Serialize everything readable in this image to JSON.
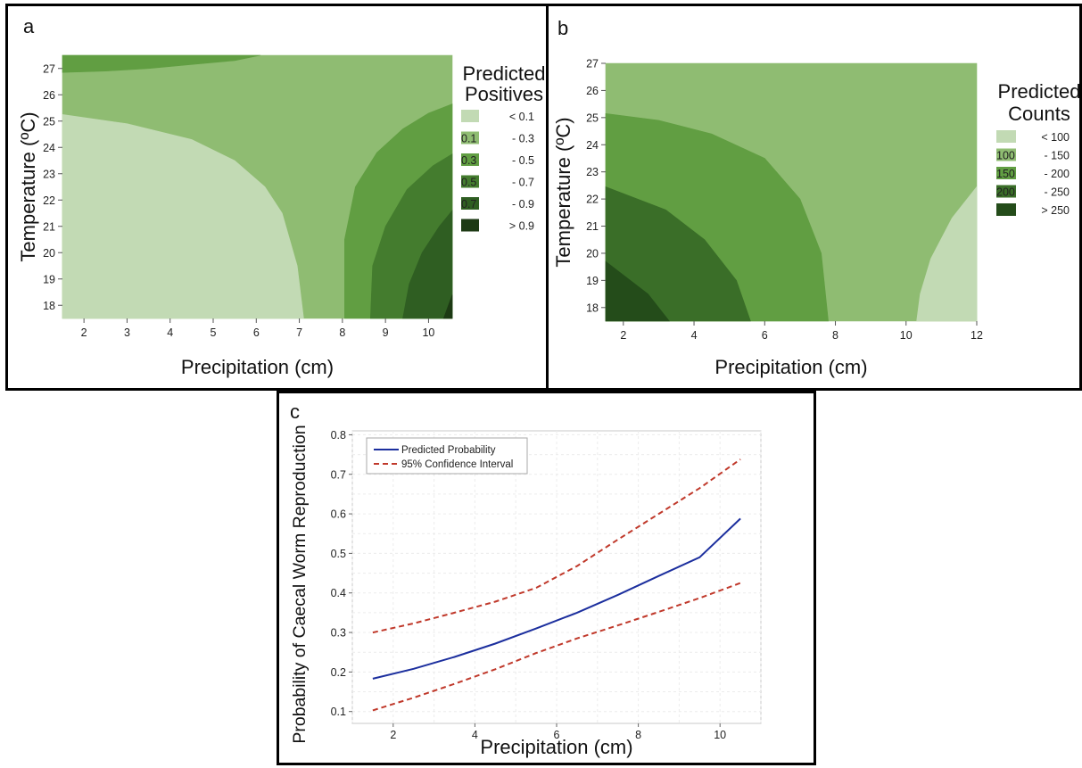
{
  "panels": {
    "a": {
      "letter": "a"
    },
    "b": {
      "letter": "b"
    },
    "c": {
      "letter": "c"
    }
  },
  "chart_data": [
    {
      "id": "a",
      "type": "heatmap",
      "xlabel": "Precipitation (cm)",
      "ylabel": "Temperature (ºC)",
      "xlim": [
        1.5,
        10.55
      ],
      "ylim": [
        17.5,
        27.5
      ],
      "xticks": [
        "2",
        "3",
        "4",
        "5",
        "6",
        "7",
        "8",
        "9",
        "10"
      ],
      "yticks": [
        "18",
        "19",
        "20",
        "21",
        "22",
        "23",
        "24",
        "25",
        "26",
        "27"
      ],
      "legend": {
        "title": [
          "Predicted",
          "Positives"
        ],
        "items": [
          {
            "low": "",
            "high": "< 0.1",
            "color": "#c2dab4"
          },
          {
            "low": "0.1",
            "high": "- 0.3",
            "color": "#8fbc72"
          },
          {
            "low": "0.3",
            "high": "- 0.5",
            "color": "#619e42"
          },
          {
            "low": "0.5",
            "high": "- 0.7",
            "color": "#447c2e"
          },
          {
            "low": "0.7",
            "high": "- 0.9",
            "color": "#2f5e22"
          },
          {
            "low": "",
            "high": "> 0.9",
            "color": "#1d3a14"
          }
        ]
      },
      "regions": [
        {
          "level": "0.1 - 0.3",
          "color": "#8fbc72",
          "points": [
            [
              1.5,
              17.5
            ],
            [
              10.55,
              17.5
            ],
            [
              10.55,
              27.5
            ],
            [
              1.5,
              27.5
            ]
          ]
        },
        {
          "level": "0.3 - 0.5",
          "color": "#619e42",
          "points": [
            [
              1.5,
              26.85
            ],
            [
              2.5,
              26.9
            ],
            [
              3.5,
              27.0
            ],
            [
              4.5,
              27.15
            ],
            [
              5.5,
              27.3
            ],
            [
              6.1,
              27.5
            ],
            [
              1.5,
              27.5
            ]
          ]
        },
        {
          "level": "< 0.1",
          "color": "#c2dab4",
          "points": [
            [
              1.5,
              17.5
            ],
            [
              7.1,
              17.5
            ],
            [
              6.95,
              19.5
            ],
            [
              6.6,
              21.5
            ],
            [
              6.2,
              22.5
            ],
            [
              5.5,
              23.5
            ],
            [
              4.5,
              24.3
            ],
            [
              3.0,
              24.9
            ],
            [
              1.5,
              25.25
            ]
          ]
        },
        {
          "level": "0.3 - 0.5",
          "color": "#619e42",
          "points": [
            [
              8.05,
              17.5
            ],
            [
              8.05,
              20.5
            ],
            [
              8.3,
              22.5
            ],
            [
              8.8,
              23.8
            ],
            [
              9.4,
              24.7
            ],
            [
              10.0,
              25.3
            ],
            [
              10.55,
              25.65
            ],
            [
              10.55,
              17.5
            ]
          ]
        },
        {
          "level": "0.5 - 0.7",
          "color": "#447c2e",
          "points": [
            [
              8.65,
              17.5
            ],
            [
              8.7,
              19.5
            ],
            [
              9.0,
              21.0
            ],
            [
              9.5,
              22.4
            ],
            [
              10.1,
              23.3
            ],
            [
              10.55,
              23.75
            ],
            [
              10.55,
              17.5
            ]
          ]
        },
        {
          "level": "0.7 - 0.9",
          "color": "#2f5e22",
          "points": [
            [
              9.4,
              17.5
            ],
            [
              9.55,
              18.8
            ],
            [
              9.85,
              20.0
            ],
            [
              10.25,
              21.0
            ],
            [
              10.55,
              21.6
            ],
            [
              10.55,
              17.5
            ]
          ]
        },
        {
          "level": "> 0.9",
          "color": "#1d3a14",
          "points": [
            [
              10.35,
              17.5
            ],
            [
              10.55,
              18.4
            ],
            [
              10.55,
              17.5
            ]
          ]
        }
      ]
    },
    {
      "id": "b",
      "type": "heatmap",
      "xlabel": "Precipitation (cm)",
      "ylabel": "Temperature (ºC)",
      "xlim": [
        1.5,
        12
      ],
      "ylim": [
        17.5,
        27
      ],
      "xticks": [
        "2",
        "4",
        "6",
        "8",
        "10",
        "12"
      ],
      "yticks": [
        "18",
        "19",
        "20",
        "21",
        "22",
        "23",
        "24",
        "25",
        "26",
        "27"
      ],
      "legend": {
        "title": [
          "Predicted",
          "Counts"
        ],
        "items": [
          {
            "low": "",
            "high": "< 100",
            "color": "#c2dab4"
          },
          {
            "low": "100",
            "high": "- 150",
            "color": "#8fbc72"
          },
          {
            "low": "150",
            "high": "- 200",
            "color": "#619e42"
          },
          {
            "low": "200",
            "high": "- 250",
            "color": "#3a6e28"
          },
          {
            "low": "",
            "high": "> 250",
            "color": "#244c1a"
          }
        ]
      },
      "regions": [
        {
          "level": "100 - 150",
          "color": "#8fbc72",
          "points": [
            [
              1.5,
              17.5
            ],
            [
              12,
              17.5
            ],
            [
              12,
              27
            ],
            [
              1.5,
              27
            ]
          ]
        },
        {
          "level": "150 - 200",
          "color": "#619e42",
          "points": [
            [
              1.5,
              17.5
            ],
            [
              7.8,
              17.5
            ],
            [
              7.6,
              20.0
            ],
            [
              7.0,
              22.0
            ],
            [
              6.0,
              23.5
            ],
            [
              4.5,
              24.4
            ],
            [
              3.0,
              24.9
            ],
            [
              1.5,
              25.15
            ]
          ]
        },
        {
          "level": "200 - 250",
          "color": "#3a6e28",
          "points": [
            [
              1.5,
              17.5
            ],
            [
              5.6,
              17.5
            ],
            [
              5.2,
              19.0
            ],
            [
              4.3,
              20.5
            ],
            [
              3.2,
              21.6
            ],
            [
              1.5,
              22.45
            ]
          ]
        },
        {
          "level": "> 250",
          "color": "#244c1a",
          "points": [
            [
              1.5,
              17.5
            ],
            [
              3.3,
              17.5
            ],
            [
              2.7,
              18.5
            ],
            [
              1.5,
              19.7
            ]
          ]
        },
        {
          "level": "< 100",
          "color": "#c2dab4",
          "points": [
            [
              10.3,
              17.5
            ],
            [
              12,
              17.5
            ],
            [
              12,
              22.45
            ],
            [
              11.3,
              21.3
            ],
            [
              10.7,
              19.8
            ],
            [
              10.4,
              18.5
            ]
          ]
        }
      ]
    },
    {
      "id": "c",
      "type": "line",
      "xlabel": "Precipitation (cm)",
      "ylabel": "Probability of Caecal Worm Reproduction",
      "xlim": [
        1.0,
        11.0
      ],
      "ylim": [
        0.07,
        0.81
      ],
      "xticks": [
        "2",
        "4",
        "6",
        "8",
        "10"
      ],
      "yticks": [
        "0.1",
        "0.2",
        "0.3",
        "0.4",
        "0.5",
        "0.6",
        "0.7",
        "0.8"
      ],
      "legend_position": "top-left",
      "series": [
        {
          "name": "Predicted Probability",
          "color": "#1c2f9e",
          "dash": "",
          "x": [
            1.5,
            2.5,
            3.5,
            4.5,
            5.5,
            6.5,
            7.5,
            8.5,
            9.5,
            10.5
          ],
          "y": [
            0.183,
            0.208,
            0.238,
            0.272,
            0.31,
            0.35,
            0.395,
            0.443,
            0.49,
            0.588
          ]
        },
        {
          "name": "95% Confidence Interval",
          "color": "#c0392b",
          "dash": "6,4",
          "x": [
            1.5,
            2.5,
            3.5,
            4.5,
            5.5,
            6.5,
            7.5,
            8.5,
            9.5,
            10.5
          ],
          "y": [
            0.3,
            0.323,
            0.35,
            0.378,
            0.413,
            0.468,
            0.535,
            0.6,
            0.665,
            0.738
          ]
        },
        {
          "name": "",
          "color": "#c0392b",
          "dash": "6,4",
          "x": [
            1.5,
            2.5,
            3.5,
            4.5,
            5.5,
            6.5,
            7.5,
            8.5,
            9.5,
            10.5
          ],
          "y": [
            0.103,
            0.135,
            0.17,
            0.207,
            0.248,
            0.285,
            0.318,
            0.352,
            0.387,
            0.425
          ]
        }
      ]
    }
  ]
}
